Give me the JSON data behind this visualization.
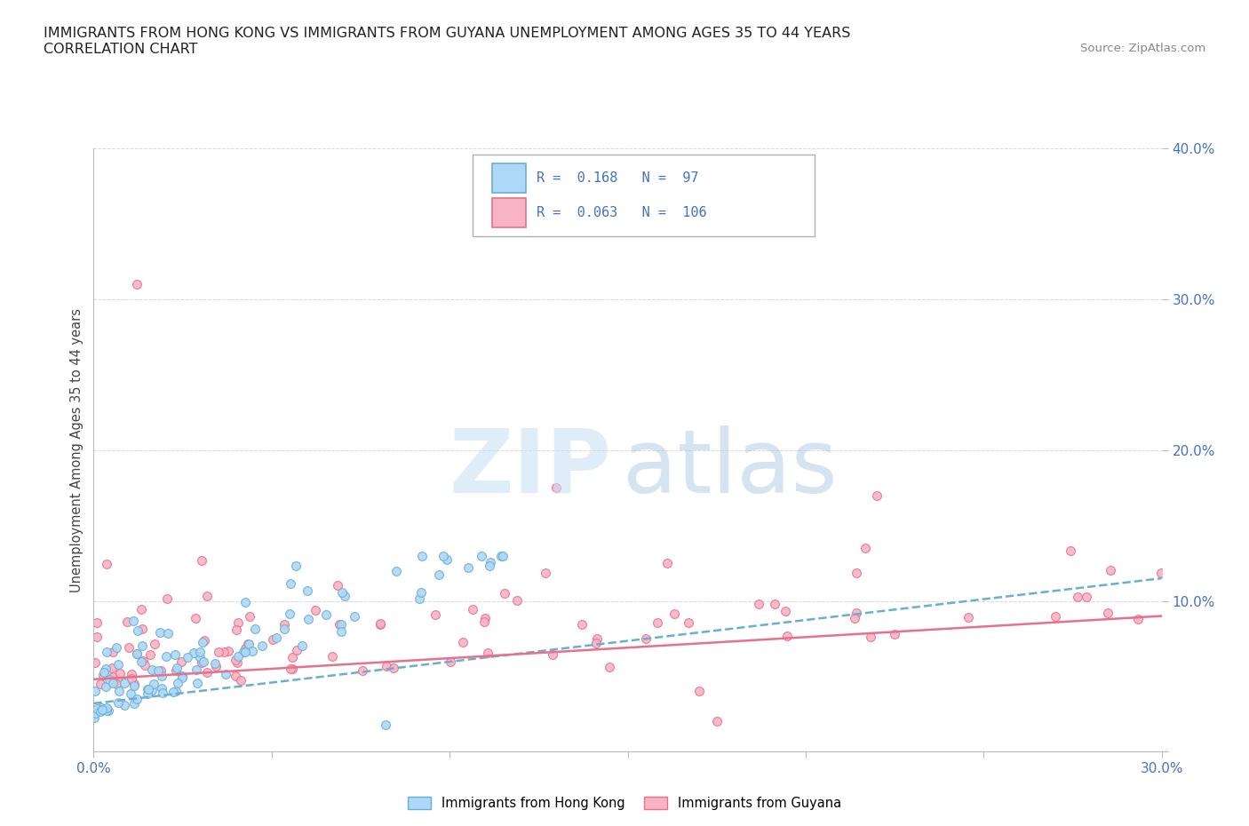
{
  "title_line1": "IMMIGRANTS FROM HONG KONG VS IMMIGRANTS FROM GUYANA UNEMPLOYMENT AMONG AGES 35 TO 44 YEARS",
  "title_line2": "CORRELATION CHART",
  "source": "Source: ZipAtlas.com",
  "ylabel": "Unemployment Among Ages 35 to 44 years",
  "xlim": [
    0.0,
    0.3
  ],
  "ylim": [
    0.0,
    0.4
  ],
  "hk_color": "#add8f7",
  "hk_edge_color": "#6aaed6",
  "gy_color": "#f9b4c4",
  "gy_edge_color": "#e8708a",
  "hk_R": 0.168,
  "hk_N": 97,
  "gy_R": 0.063,
  "gy_N": 106,
  "tick_label_color": "#4472c4",
  "watermark_zip_color": "#c5dff5",
  "watermark_atlas_color": "#a0c4e0",
  "background_color": "#ffffff",
  "grid_color": "#d0d0d0",
  "hk_line_color": "#6aaed6",
  "gy_line_color": "#e8708a",
  "hk_line_start_y": 0.032,
  "hk_line_end_y": 0.115,
  "gy_line_start_y": 0.048,
  "gy_line_end_y": 0.09,
  "title_fontsize": 11.5,
  "source_fontsize": 9.5,
  "tick_fontsize": 11,
  "ylabel_fontsize": 10.5,
  "legend_fontsize": 11
}
